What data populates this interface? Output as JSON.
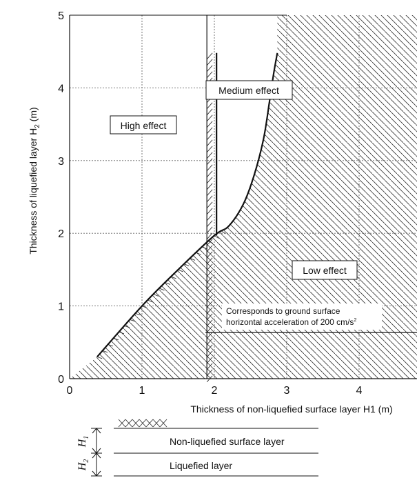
{
  "chart_data": {
    "type": "line",
    "xlabel": "Thickness of non-liquefied surface layer H1 (m)",
    "ylabel": {
      "main": "Thickness of liquefied layer H",
      "subscript": "2",
      "unit": " (m)"
    },
    "xlim": [
      0,
      4.8
    ],
    "ylim": [
      0,
      5
    ],
    "x_ticks": [
      "0",
      "1",
      "2",
      "3",
      "4"
    ],
    "y_ticks": [
      "0",
      "1",
      "2",
      "3",
      "4",
      "5"
    ],
    "grid": true,
    "series": [
      {
        "values": [
          [
            0.38,
            0.3
          ],
          [
            1.0,
            1.0
          ],
          [
            1.5,
            1.5
          ],
          [
            2.0,
            1.97
          ],
          [
            2.2,
            2.1
          ],
          [
            2.4,
            2.4
          ],
          [
            2.55,
            2.8
          ],
          [
            2.68,
            3.3
          ],
          [
            2.76,
            3.8
          ],
          [
            2.82,
            4.2
          ],
          [
            2.87,
            4.48
          ]
        ]
      },
      {
        "values": [
          [
            2.03,
            1.97
          ],
          [
            2.03,
            4.48
          ]
        ]
      }
    ],
    "regions": {
      "high": "High effect",
      "medium": "Medium effect",
      "low": "Low effect"
    },
    "annotation": {
      "line1": "Corresponds to ground surface",
      "line2": "horizontal acceleration of 200 cm/s",
      "sup": "2"
    }
  },
  "legend": {
    "h1_letter": "H",
    "h1_sub": "1",
    "h2_letter": "H",
    "h2_sub": "2",
    "non_liquefied": "Non-liquefied surface layer",
    "liquefied": "Liquefied layer"
  }
}
